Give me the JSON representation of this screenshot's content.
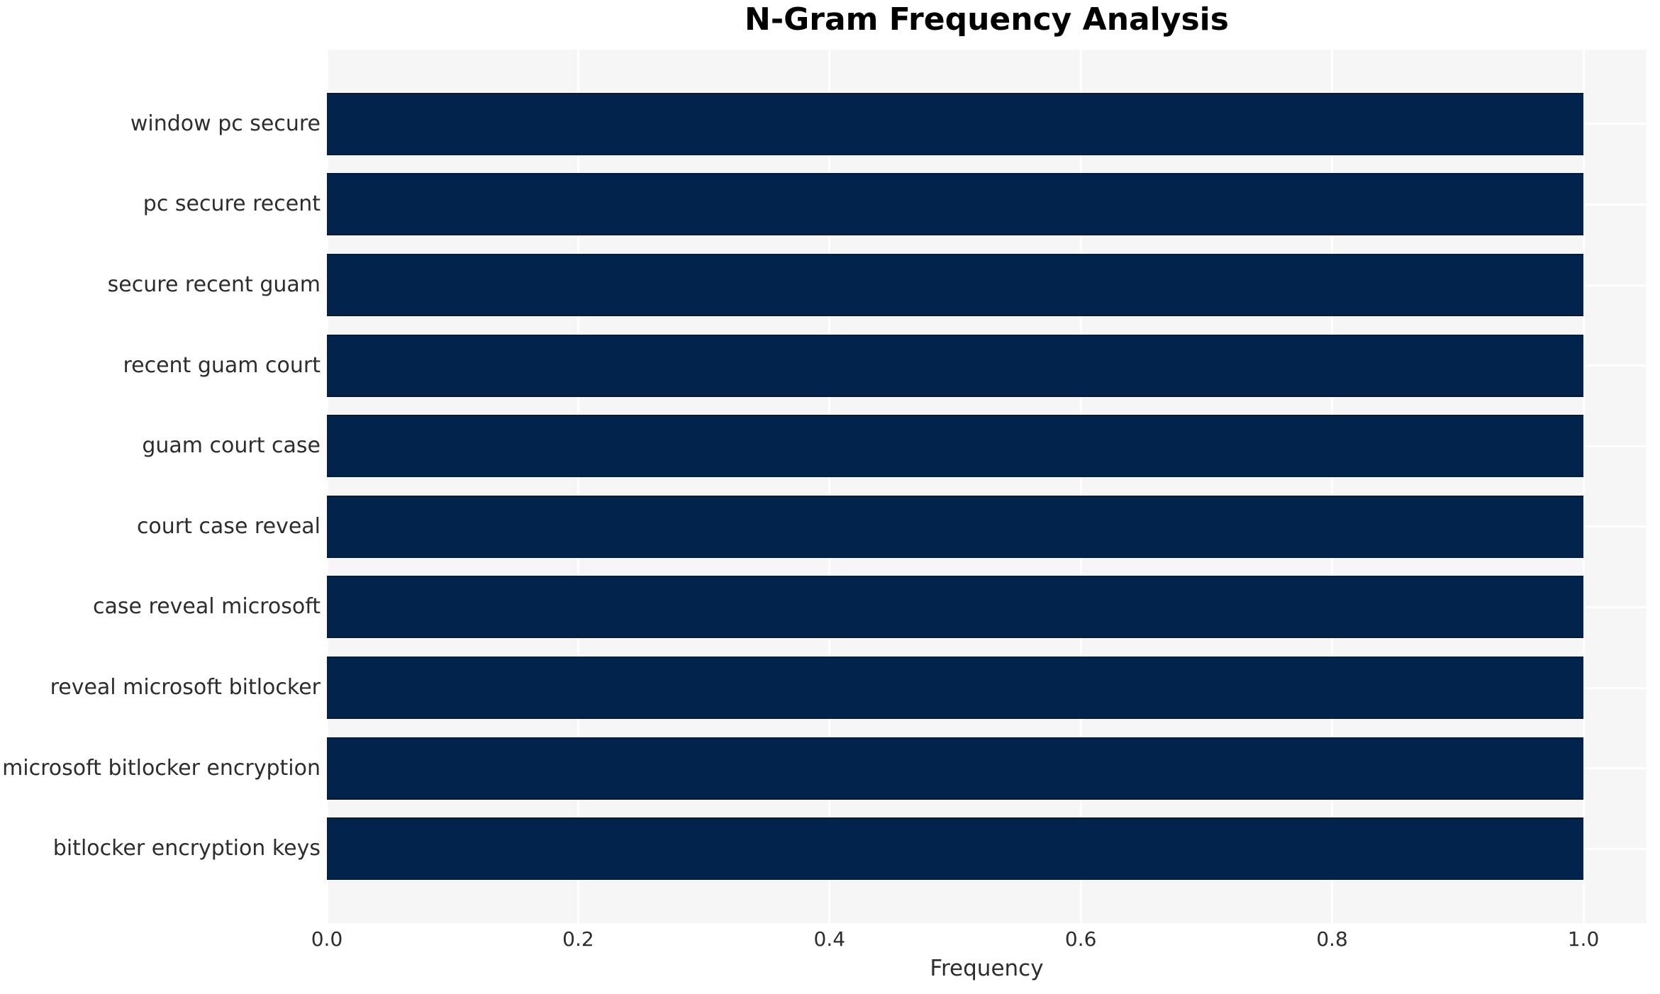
{
  "chart_data": {
    "type": "bar",
    "orientation": "horizontal",
    "title": "N-Gram Frequency Analysis",
    "xlabel": "Frequency",
    "ylabel": "",
    "categories": [
      "window pc secure",
      "pc secure recent",
      "secure recent guam",
      "recent guam court",
      "guam court case",
      "court case reveal",
      "case reveal microsoft",
      "reveal microsoft bitlocker",
      "microsoft bitlocker encryption",
      "bitlocker encryption keys"
    ],
    "values": [
      1.0,
      1.0,
      1.0,
      1.0,
      1.0,
      1.0,
      1.0,
      1.0,
      1.0,
      1.0
    ],
    "xticks": [
      {
        "label": "0.0",
        "value": 0.0
      },
      {
        "label": "0.2",
        "value": 0.2
      },
      {
        "label": "0.4",
        "value": 0.4
      },
      {
        "label": "0.6",
        "value": 0.6
      },
      {
        "label": "0.8",
        "value": 0.8
      },
      {
        "label": "1.0",
        "value": 1.0
      }
    ],
    "xlim": [
      0,
      1.05
    ],
    "grid": true,
    "legend": null,
    "colors": {
      "bar": "#02234c",
      "bar_edge": "#041c3a",
      "plot_bg": "#f6f6f7",
      "grid": "#ffffff",
      "text": "#2d2d2d",
      "title": "#000000"
    }
  }
}
